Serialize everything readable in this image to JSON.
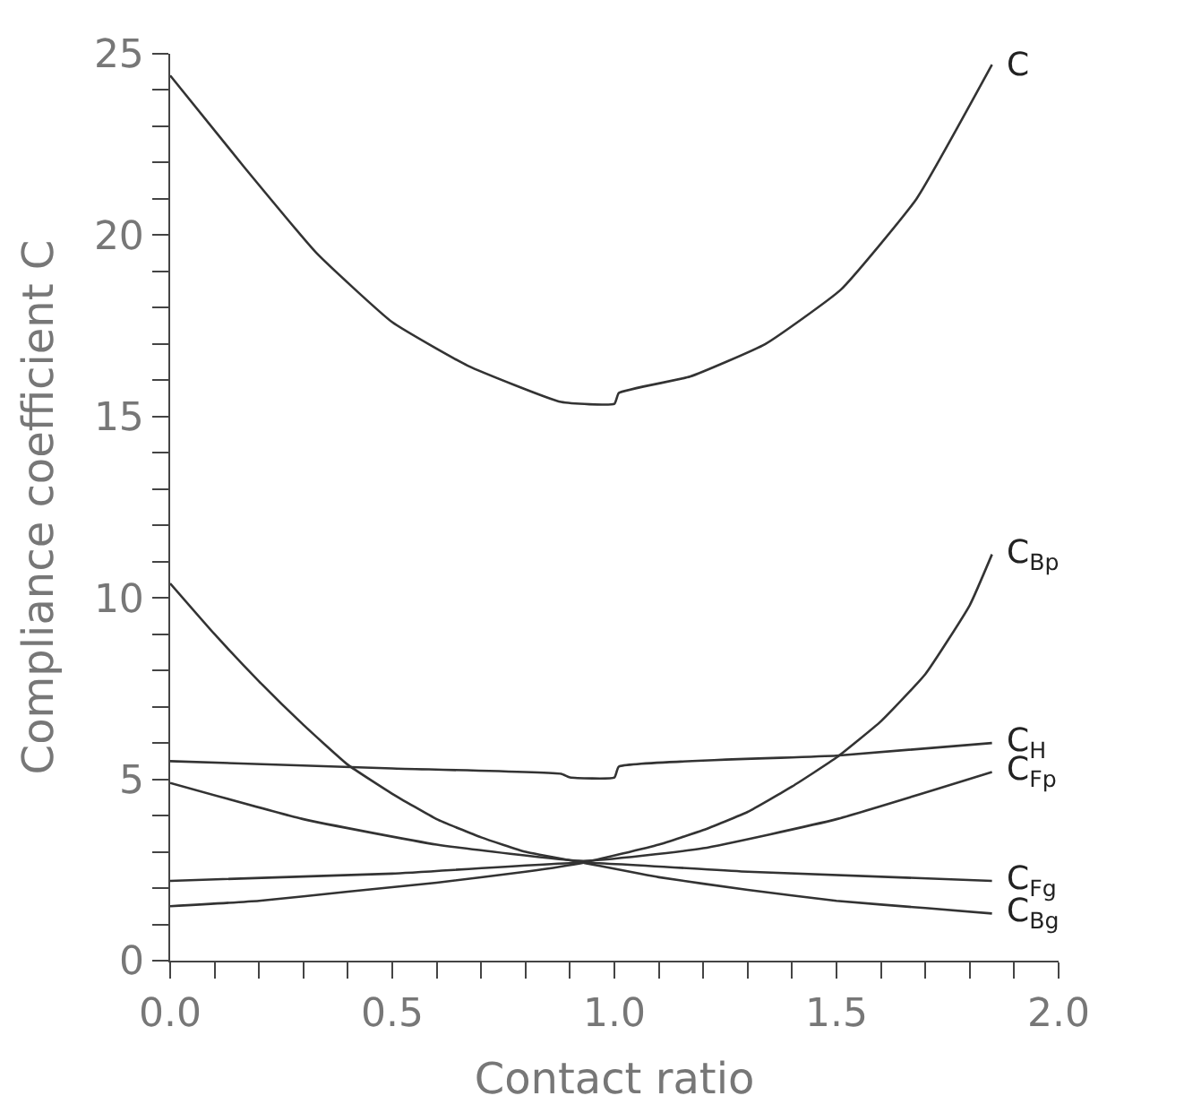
{
  "chart_data": {
    "type": "line",
    "xlabel": "Contact ratio",
    "ylabel": "Compliance coefficient C",
    "xlim": [
      0,
      2
    ],
    "ylim": [
      0,
      25
    ],
    "xticks": [
      {
        "value": 0,
        "label": "0.0"
      },
      {
        "value": 0.1,
        "label": null
      },
      {
        "value": 0.2,
        "label": null
      },
      {
        "value": 0.3,
        "label": null
      },
      {
        "value": 0.4,
        "label": null
      },
      {
        "value": 0.5,
        "label": "0.5"
      },
      {
        "value": 0.6,
        "label": null
      },
      {
        "value": 0.7,
        "label": null
      },
      {
        "value": 0.8,
        "label": null
      },
      {
        "value": 0.9,
        "label": null
      },
      {
        "value": 1,
        "label": "1.0"
      },
      {
        "value": 1.1,
        "label": null
      },
      {
        "value": 1.2,
        "label": null
      },
      {
        "value": 1.3,
        "label": null
      },
      {
        "value": 1.4,
        "label": null
      },
      {
        "value": 1.5,
        "label": "1.5"
      },
      {
        "value": 1.6,
        "label": null
      },
      {
        "value": 1.7,
        "label": null
      },
      {
        "value": 1.8,
        "label": null
      },
      {
        "value": 1.9,
        "label": null
      },
      {
        "value": 2,
        "label": "2.0"
      }
    ],
    "yticks": [
      0,
      {
        "value": 1,
        "label": null
      },
      {
        "value": 2,
        "label": null
      },
      {
        "value": 3,
        "label": null
      },
      {
        "value": 4,
        "label": null
      },
      5,
      {
        "value": 6,
        "label": null
      },
      {
        "value": 7,
        "label": null
      },
      {
        "value": 8,
        "label": null
      },
      {
        "value": 9,
        "label": null
      },
      10,
      {
        "value": 11,
        "label": null
      },
      {
        "value": 12,
        "label": null
      },
      {
        "value": 13,
        "label": null
      },
      {
        "value": 14,
        "label": null
      },
      15,
      {
        "value": 16,
        "label": null
      },
      {
        "value": 17,
        "label": null
      },
      {
        "value": 18,
        "label": null
      },
      {
        "value": 19,
        "label": null
      },
      20,
      {
        "value": 21,
        "label": null
      },
      {
        "value": 22,
        "label": null
      },
      {
        "value": 23,
        "label": null
      },
      {
        "value": 24,
        "label": null
      },
      25
    ],
    "legend": false,
    "marker": "none",
    "line_style": "solid",
    "series": [
      {
        "name": "C",
        "color": "#333333",
        "x": [
          0,
          0.165,
          0.33,
          0.5,
          0.67,
          0.88,
          1.0,
          1.01,
          1.17,
          1.34,
          1.51,
          1.68,
          1.85
        ],
        "values": [
          24.4,
          21.9,
          19.5,
          17.6,
          16.4,
          15.4,
          15.35,
          15.65,
          16.1,
          17.0,
          18.5,
          21.0,
          24.7
        ]
      },
      {
        "name": "C$_{Bp}$",
        "color": "#333333",
        "x": [
          0,
          0.2,
          0.4,
          0.6,
          0.8,
          0.93,
          1.1,
          1.2,
          1.3,
          1.4,
          1.5,
          1.6,
          1.7,
          1.8,
          1.85
        ],
        "values": [
          1.5,
          1.65,
          1.9,
          2.15,
          2.45,
          2.7,
          3.2,
          3.6,
          4.1,
          4.8,
          5.6,
          6.6,
          7.9,
          9.8,
          11.2
        ]
      },
      {
        "name": "C$_{H}$",
        "color": "#333333",
        "x": [
          0,
          0.5,
          0.88,
          0.9,
          1.0,
          1.01,
          1.5,
          1.85
        ],
        "values": [
          5.5,
          5.3,
          5.15,
          5.05,
          5.05,
          5.35,
          5.65,
          6.0
        ]
      },
      {
        "name": "C$_{Fp}$",
        "color": "#333333",
        "x": [
          0,
          0.3,
          0.6,
          0.93,
          1.2,
          1.5,
          1.85
        ],
        "values": [
          4.9,
          3.9,
          3.2,
          2.75,
          3.1,
          3.9,
          5.2
        ]
      },
      {
        "name": "C$_{Fg}$",
        "color": "#333333",
        "x": [
          0,
          0.5,
          0.93,
          1.3,
          1.85
        ],
        "values": [
          2.2,
          2.4,
          2.7,
          2.45,
          2.2
        ]
      },
      {
        "name": "C$_{Bg}$",
        "color": "#333333",
        "x": [
          0,
          0.1,
          0.2,
          0.3,
          0.4,
          0.5,
          0.6,
          0.7,
          0.8,
          0.93,
          1.1,
          1.3,
          1.5,
          1.7,
          1.85
        ],
        "values": [
          10.4,
          9.0,
          7.7,
          6.5,
          5.4,
          4.6,
          3.9,
          3.4,
          3.0,
          2.7,
          2.3,
          1.95,
          1.65,
          1.45,
          1.3
        ]
      }
    ]
  }
}
